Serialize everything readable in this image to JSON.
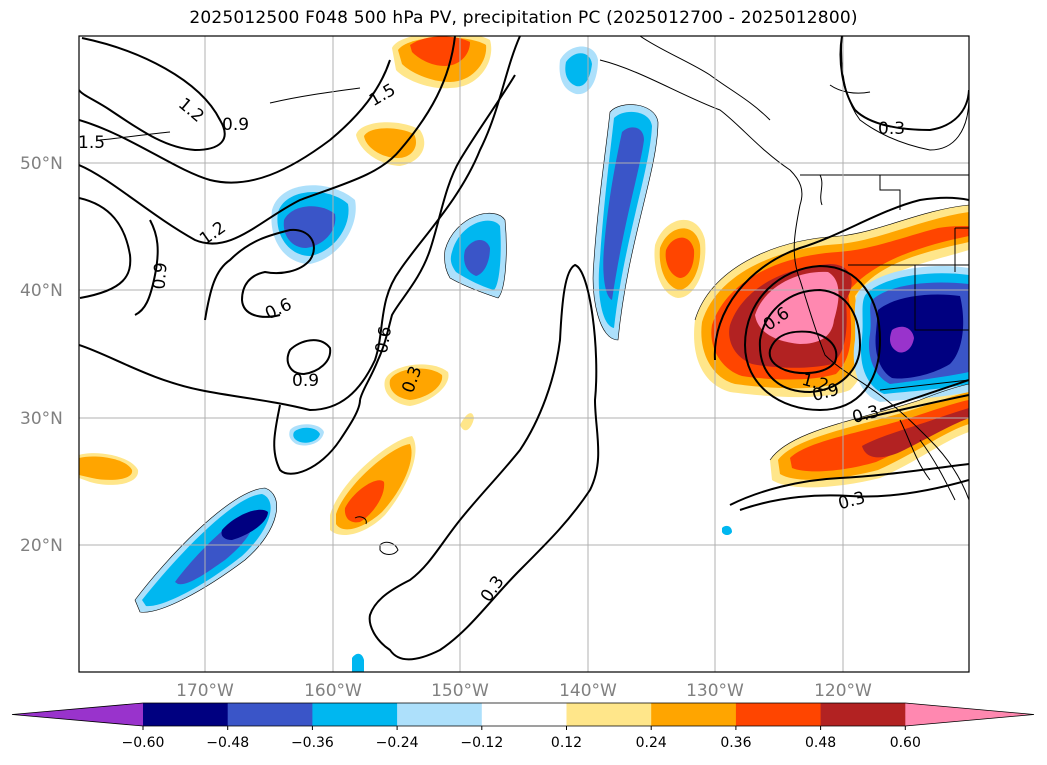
{
  "title": "2025012500 F048 500 hPa PV, precipitation PC (2025012700 - 2025012800)",
  "axes": {
    "lat_labels": [
      "50°N",
      "40°N",
      "30°N",
      "20°N"
    ],
    "lon_labels": [
      "170°W",
      "160°W",
      "150°W",
      "140°W",
      "130°W",
      "120°W"
    ]
  },
  "contour_labels": [
    "1.5",
    "1.2",
    "0.9",
    "1.5",
    "0.9",
    "1.2",
    "0.6",
    "0.9",
    "0.6",
    "0.3",
    "0.3",
    "0.6",
    "1.2",
    "0.9",
    "0.3",
    "0.3",
    "0.3"
  ],
  "colorbar": {
    "colors": [
      "#9933cc",
      "#000080",
      "#3a55c8",
      "#00b7f0",
      "#ade0fb",
      "#ffffff",
      "#ffe68a",
      "#ffa500",
      "#ff4500",
      "#b22222",
      "#ff88b0"
    ],
    "tick_labels": [
      "−0.60",
      "−0.48",
      "−0.36",
      "−0.24",
      "−0.12",
      "0.12",
      "0.24",
      "0.36",
      "0.48",
      "0.60"
    ]
  }
}
